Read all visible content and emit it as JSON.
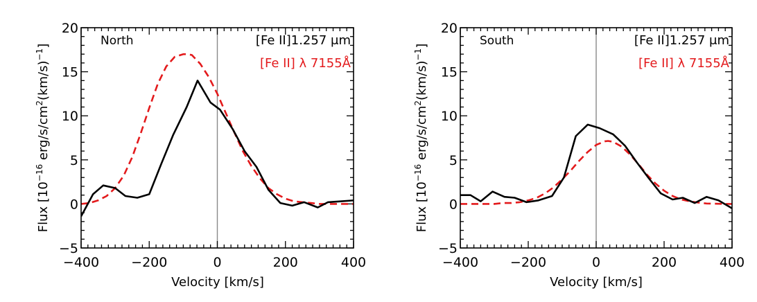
{
  "chart_data": [
    {
      "type": "line",
      "panel_label": "North",
      "xlabel": "Velocity [km/s]",
      "ylabel_prefix": "Flux [10",
      "ylabel_exp": "−16",
      "ylabel_mid": " erg/s/cm",
      "ylabel_exp2": "2",
      "ylabel_end": "(km/s)",
      "ylabel_exp3": "−1",
      "ylabel_close": "]",
      "xlim": [
        -400,
        400
      ],
      "ylim": [
        -5,
        20
      ],
      "xticks": [
        -400,
        -200,
        0,
        200,
        400
      ],
      "xtick_labels": [
        "−400",
        "−200",
        "0",
        "200",
        "400"
      ],
      "yticks": [
        -5,
        0,
        5,
        10,
        15,
        20
      ],
      "ytick_labels": [
        "−5",
        "0",
        "5",
        "10",
        "15",
        "20"
      ],
      "vline_x": 0,
      "legend": [
        {
          "label": "[Fe II]1.257 μm",
          "color": "#000000",
          "style": "solid"
        },
        {
          "label": "[Fe II] λ 7155Å",
          "color": "#e31a1c",
          "style": "dashed"
        }
      ],
      "series": [
        {
          "name": "[Fe II]1.257 μm",
          "color": "#000000",
          "style": "solid",
          "x": [
            -400,
            -365,
            -335,
            -300,
            -270,
            -235,
            -200,
            -165,
            -130,
            -90,
            -58,
            -20,
            8,
            45,
            80,
            115,
            150,
            185,
            220,
            255,
            295,
            325,
            365,
            400
          ],
          "y": [
            -1.4,
            1.1,
            2.1,
            1.8,
            0.9,
            0.7,
            1.1,
            4.5,
            7.8,
            11.0,
            14.0,
            11.5,
            10.7,
            8.5,
            6.0,
            4.2,
            1.6,
            0.1,
            -0.2,
            0.2,
            -0.4,
            0.2,
            0.3,
            0.4
          ]
        },
        {
          "name": "[Fe II] λ 7155Å",
          "color": "#e31a1c",
          "style": "dashed",
          "x": [
            -400,
            -375,
            -350,
            -325,
            -300,
            -275,
            -250,
            -225,
            -200,
            -175,
            -150,
            -125,
            -100,
            -90,
            -75,
            -50,
            -25,
            0,
            25,
            50,
            75,
            100,
            125,
            150,
            175,
            200,
            225,
            250,
            275,
            300,
            325,
            350,
            375,
            400
          ],
          "y": [
            0.0,
            0.1,
            0.4,
            0.9,
            1.8,
            3.2,
            5.3,
            8.0,
            10.9,
            13.6,
            15.6,
            16.7,
            17.0,
            17.0,
            16.9,
            15.9,
            14.4,
            12.5,
            10.3,
            8.1,
            6.0,
            4.3,
            2.9,
            1.8,
            1.1,
            0.6,
            0.3,
            0.2,
            0.1,
            0.0,
            0.0,
            0.0,
            0.0,
            0.0
          ]
        }
      ]
    },
    {
      "type": "line",
      "panel_label": "South",
      "xlabel": "Velocity [km/s]",
      "ylabel_prefix": "Flux [10",
      "ylabel_exp": "−16",
      "ylabel_mid": " erg/s/cm",
      "ylabel_exp2": "2",
      "ylabel_end": "(km/s)",
      "ylabel_exp3": "−1",
      "ylabel_close": "]",
      "xlim": [
        -400,
        400
      ],
      "ylim": [
        -5,
        20
      ],
      "xticks": [
        -400,
        -200,
        0,
        200,
        400
      ],
      "xtick_labels": [
        "−400",
        "−200",
        "0",
        "200",
        "400"
      ],
      "yticks": [
        -5,
        0,
        5,
        10,
        15,
        20
      ],
      "ytick_labels": [
        "−5",
        "0",
        "5",
        "10",
        "15",
        "20"
      ],
      "vline_x": 0,
      "legend": [
        {
          "label": "[Fe II]1.257 μm",
          "color": "#000000",
          "style": "solid"
        },
        {
          "label": "[Fe II] λ 7155Å",
          "color": "#e31a1c",
          "style": "dashed"
        }
      ],
      "series": [
        {
          "name": "[Fe II]1.257 μm",
          "color": "#000000",
          "style": "solid",
          "x": [
            -400,
            -370,
            -340,
            -305,
            -270,
            -240,
            -205,
            -170,
            -130,
            -95,
            -60,
            -25,
            10,
            50,
            85,
            120,
            155,
            190,
            225,
            255,
            290,
            325,
            360,
            400
          ],
          "y": [
            1.0,
            1.0,
            0.3,
            1.4,
            0.8,
            0.7,
            0.2,
            0.4,
            0.9,
            3.0,
            7.7,
            9.0,
            8.6,
            7.9,
            6.6,
            4.7,
            2.9,
            1.2,
            0.5,
            0.7,
            0.1,
            0.8,
            0.4,
            -0.5
          ]
        },
        {
          "name": "[Fe II] λ 7155Å",
          "color": "#e31a1c",
          "style": "dashed",
          "x": [
            -400,
            -375,
            -350,
            -325,
            -300,
            -275,
            -250,
            -225,
            -200,
            -175,
            -150,
            -125,
            -100,
            -75,
            -50,
            -25,
            0,
            25,
            35,
            50,
            75,
            100,
            125,
            150,
            175,
            200,
            225,
            250,
            275,
            300,
            325,
            350,
            375,
            400
          ],
          "y": [
            0.0,
            0.0,
            0.0,
            0.0,
            0.0,
            0.1,
            0.1,
            0.2,
            0.4,
            0.7,
            1.2,
            1.9,
            2.8,
            3.8,
            4.9,
            5.9,
            6.7,
            7.1,
            7.15,
            7.05,
            6.5,
            5.6,
            4.5,
            3.3,
            2.3,
            1.5,
            0.9,
            0.5,
            0.3,
            0.15,
            0.05,
            0.02,
            0.0,
            0.0
          ]
        }
      ]
    }
  ]
}
